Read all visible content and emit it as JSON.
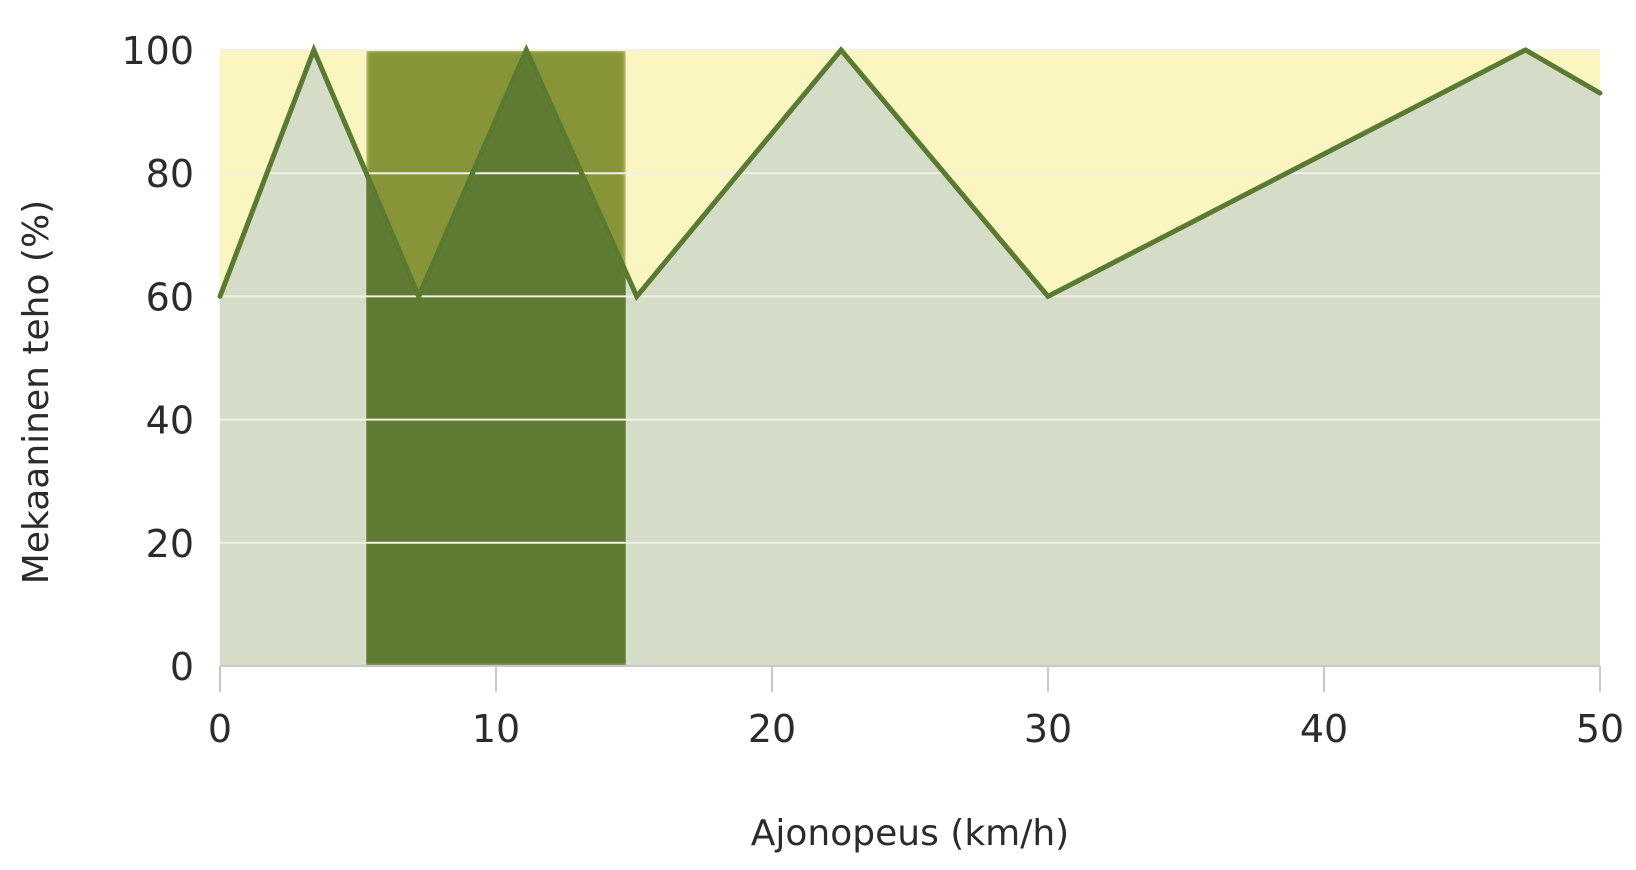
{
  "chart_data": {
    "type": "line",
    "title": "",
    "xlabel": "Ajonopeus (km/h)",
    "ylabel": "Mekaaninen teho (%)",
    "xlim": [
      0,
      50
    ],
    "ylim": [
      0,
      100
    ],
    "x_ticks": [
      0,
      10,
      20,
      30,
      40,
      50
    ],
    "y_ticks": [
      0,
      20,
      40,
      60,
      80,
      100
    ],
    "grid": "horizontal",
    "legend": "none",
    "highlight_band": {
      "x_start": 5.3,
      "x_end": 14.7
    },
    "series": [
      {
        "x": [
          0,
          3.4,
          7.2,
          11.1,
          15.1,
          22.5,
          30,
          47.3,
          50
        ],
        "values": [
          60,
          100,
          60,
          100,
          60,
          100,
          60,
          100,
          93
        ]
      }
    ],
    "colors": {
      "upper_band": "#fbf5c1",
      "area_fill": "#d5ddc8",
      "line": "#5a7a31",
      "highlight_area": "#5e7a33",
      "highlight_upper": "#879537",
      "gridline": "#f1f1e6",
      "axis": "#c8c8c8"
    }
  }
}
